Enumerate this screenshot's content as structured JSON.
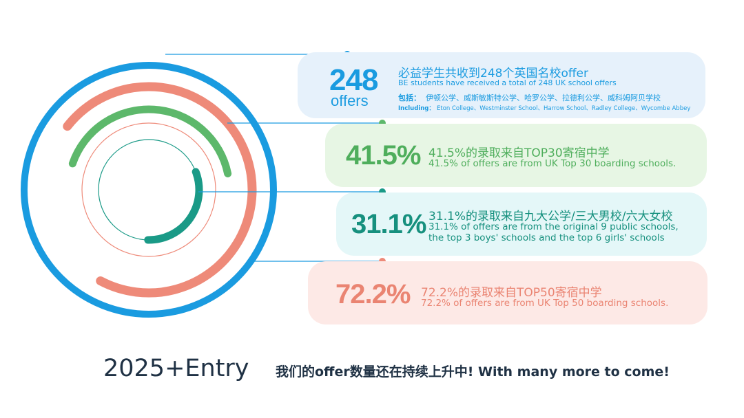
{
  "chart_data": {
    "type": "radial-bar",
    "unit": "%",
    "items": [
      {
        "big_number": "248",
        "big_sub": "offers",
        "title_zh": "必益学生共收到248个英国名校offer",
        "title_en": "BE students have received a total of 248 UK school offers",
        "including_zh_label": "包括：",
        "including_zh": "伊顿公学、威斯敏斯特公学、哈罗公学、拉德利公学、威科姆阿贝学校",
        "including_en_label": "Including：",
        "including_en": "Eton College、Westminster School、Harrow School、Radley College、Wycombe Abbey",
        "value": 100,
        "color": "#1a9be0",
        "card_color": "#e6f1fb"
      },
      {
        "big_number": "41.5%",
        "title_zh": "41.5%的录取来自TOP30寄宿中学",
        "title_en": "41.5% of offers are from UK Top 30 boarding schools.",
        "value": 41.5,
        "color": "#5db86b",
        "card_color": "#e7f6e4"
      },
      {
        "big_number": "31.1%",
        "title_zh": "31.1%的录取来自九大公学/三大男校/六大女校",
        "title_en_1": "31.1% of offers are from the original 9 public schools,",
        "title_en_2": "the top 3 boys' schools and the top 6 girls' schools",
        "value": 31.1,
        "color": "#1a9a87",
        "card_color": "#e4f7f8"
      },
      {
        "big_number": "72.2%",
        "title_zh": "72.2%的录取来自TOP50寄宿中学",
        "title_en": "72.2% of offers are from UK Top 50 boarding schools.",
        "value": 72.2,
        "color": "#ee8a79",
        "card_color": "#fde9e6"
      }
    ]
  },
  "footer": {
    "left": "2025+Entry",
    "right": "我们的offer数量还在持续上升中!  With many more to come!"
  },
  "colors": {
    "text_dark": "#1f3144",
    "text_grey": "#888888",
    "connector_dot": "#1a9be0"
  }
}
